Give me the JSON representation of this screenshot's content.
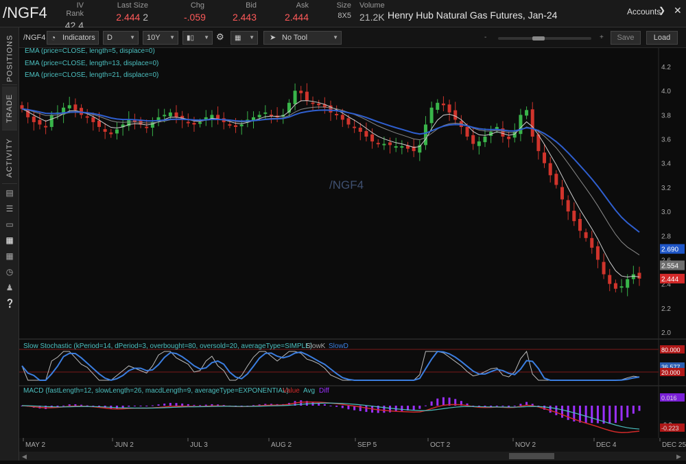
{
  "header": {
    "symbol": "/NGF4",
    "fields": [
      {
        "label": "IV Rank",
        "value": "42.4"
      },
      {
        "label": "Last Size",
        "value": "2.444",
        "size": "2"
      },
      {
        "label": "Chg",
        "value": "-.059"
      },
      {
        "label": "Bid",
        "value": "2.443"
      },
      {
        "label": "Ask",
        "value": "2.444"
      },
      {
        "label": "Size",
        "value": "8X5"
      },
      {
        "label": "Volume",
        "value": "21.2K"
      }
    ],
    "description": "Henry Hub Natural Gas Futures, Jan-24",
    "accounts_label": "Accounts"
  },
  "sidebar": {
    "tabs": [
      "POSITIONS",
      "TRADE",
      "ACTIVITY"
    ],
    "icons": [
      "document-icon",
      "list-icon",
      "tv-icon",
      "chart-icon",
      "grid-icon",
      "clock-icon",
      "people-icon",
      "help-icon"
    ]
  },
  "toolbar": {
    "symbol": "/NGF4",
    "indicators_label": "Indicators",
    "aggregation": "D",
    "period": "10Y",
    "tool": "No Tool",
    "save_label": "Save",
    "load_label": "Load"
  },
  "chart_data": {
    "type": "candlestick",
    "watermark": "/NGF4",
    "studies": [
      "EMA (price=CLOSE, length=5, displace=0)",
      "EMA (price=CLOSE, length=13, displace=0)",
      "EMA (price=CLOSE, length=21, displace=0)"
    ],
    "price_axis_ticks": [
      "4.2",
      "4.0",
      "3.8",
      "3.6",
      "3.4",
      "3.2",
      "3.0",
      "2.8",
      "2.6",
      "2.4",
      "2.2",
      "2.0"
    ],
    "price_badges": [
      {
        "text": "2.690",
        "color": "#1e56c8"
      },
      {
        "text": "2.554",
        "color": "#6e6e6e"
      },
      {
        "text": "2.444",
        "color": "#d42a2a"
      }
    ],
    "x_labels": [
      "MAY 2",
      "JUN 2",
      "JUL 3",
      "AUG 2",
      "SEP 5",
      "OCT 2",
      "NOV 2",
      "DEC 4",
      "DEC 25"
    ],
    "ylim": [
      2.0,
      4.2
    ],
    "closes": [
      3.85,
      3.78,
      3.74,
      3.72,
      3.7,
      3.8,
      3.82,
      3.86,
      3.88,
      3.84,
      3.8,
      3.78,
      3.74,
      3.7,
      3.66,
      3.64,
      3.68,
      3.72,
      3.76,
      3.74,
      3.72,
      3.7,
      3.74,
      3.78,
      3.8,
      3.82,
      3.78,
      3.76,
      3.74,
      3.72,
      3.74,
      3.78,
      3.8,
      3.76,
      3.74,
      3.72,
      3.7,
      3.72,
      3.76,
      3.78,
      3.8,
      3.82,
      3.8,
      3.78,
      3.8,
      3.9,
      4.0,
      3.98,
      3.92,
      3.9,
      3.88,
      3.86,
      3.82,
      3.8,
      3.76,
      3.72,
      3.7,
      3.66,
      3.62,
      3.58,
      3.56,
      3.56,
      3.55,
      3.54,
      3.54,
      3.52,
      3.5,
      3.55,
      3.72,
      3.86,
      3.9,
      3.88,
      3.82,
      3.76,
      3.7,
      3.62,
      3.56,
      3.58,
      3.62,
      3.66,
      3.7,
      3.62,
      3.6,
      3.66,
      3.8,
      3.84,
      3.62,
      3.5,
      3.4,
      3.3,
      3.22,
      3.1,
      3.0,
      2.92,
      2.84,
      2.78,
      2.7,
      2.6,
      2.48,
      2.4,
      2.36,
      2.38,
      2.44,
      2.48,
      2.444
    ],
    "stochastic": {
      "title": "Slow Stochastic (kPeriod=14, dPeriod=3, overbought=80, oversold=20, averageType=SIMPLE)",
      "legend": [
        "SlowK",
        "SlowD"
      ],
      "badges": [
        "80.000",
        "36.577",
        "20.000"
      ]
    },
    "macd": {
      "title": "MACD (fastLength=12, slowLength=26, macdLength=9, averageType=EXPONENTIAL)",
      "legend": [
        "Value",
        "Avg",
        "Diff"
      ],
      "badges": [
        "0.016",
        "-0.2",
        "-0.223"
      ]
    }
  }
}
